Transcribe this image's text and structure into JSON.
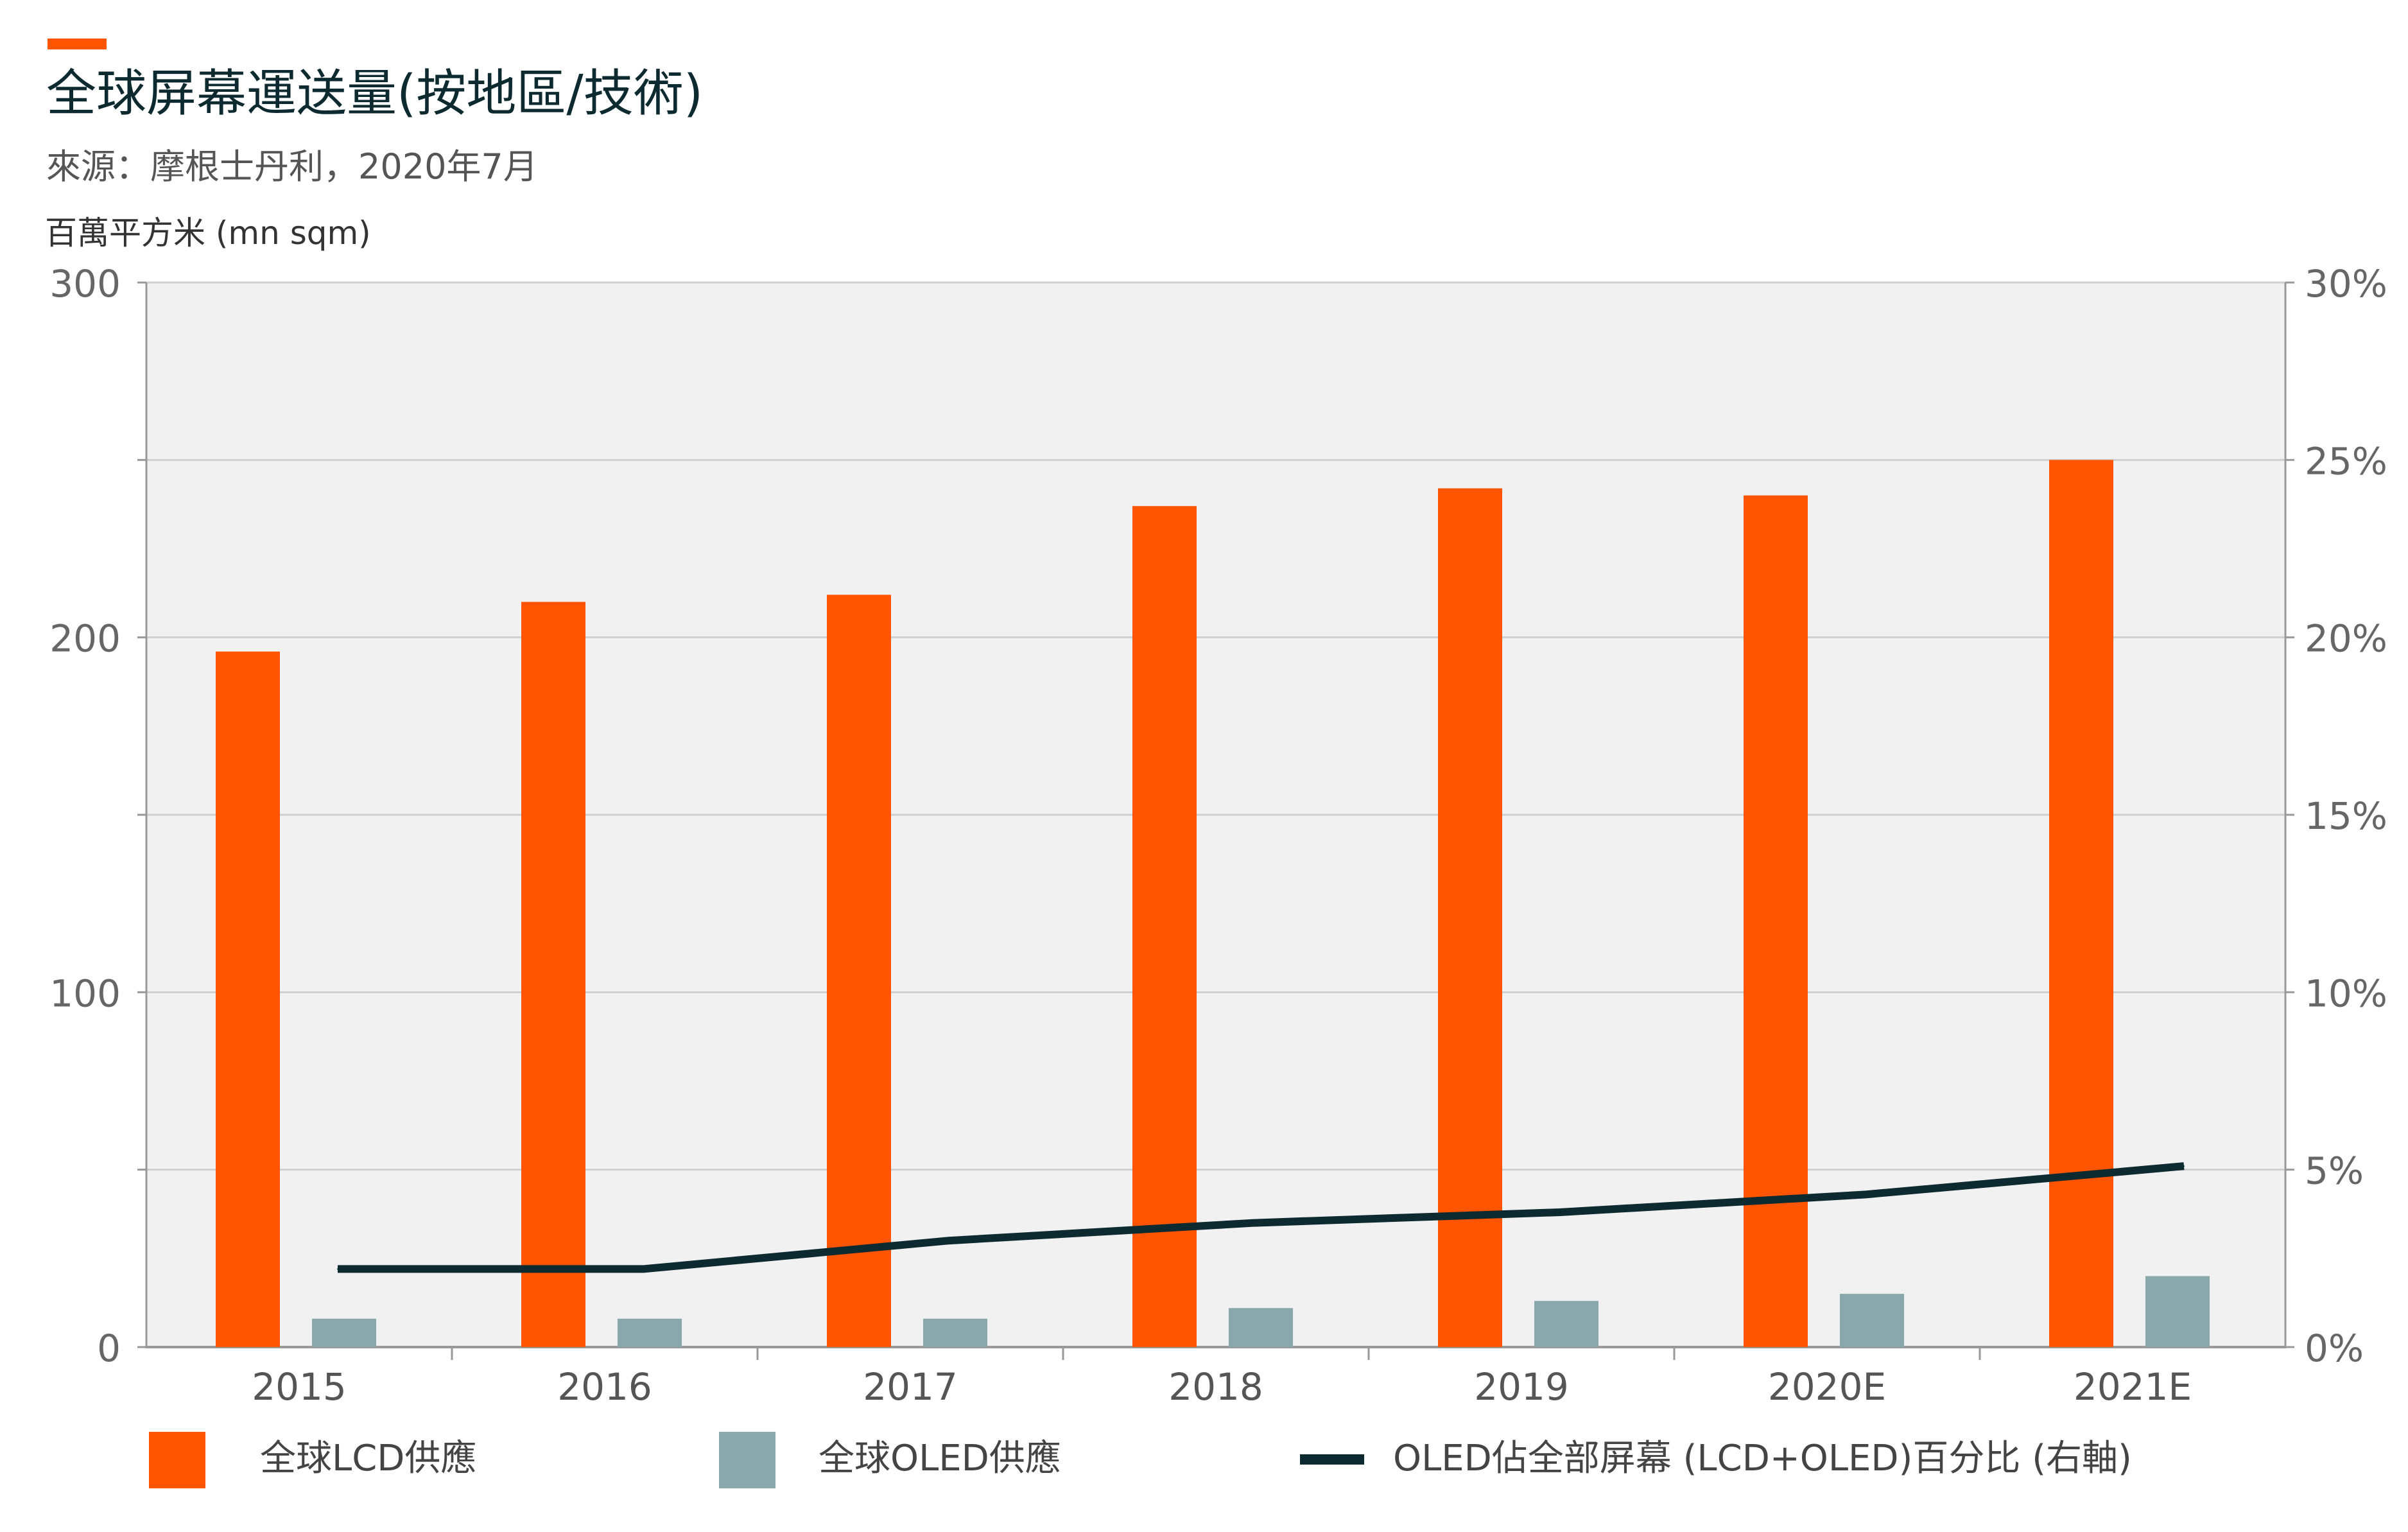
{
  "title": "全球屏幕運送量(按地區/技術)",
  "source": "來源：摩根士丹利，2020年7月",
  "colors": {
    "accent": "#ff5500",
    "lcd": "#ff5500",
    "oled": "#88a8ab",
    "line": "#0d2a30",
    "plot_bg": "#f1f1f1",
    "grid": "#cfcfcf"
  },
  "chart_data": {
    "type": "bar",
    "categories": [
      "2015",
      "2016",
      "2017",
      "2018",
      "2019",
      "2020E",
      "2021E"
    ],
    "ylabel": "百萬平方米 (mn sqm)",
    "ylim": [
      0,
      300
    ],
    "y_ticks": [
      "0",
      "100",
      "200",
      "300"
    ],
    "y2lim": [
      0,
      30
    ],
    "y2_ticks": [
      "0%",
      "5%",
      "10%",
      "15%",
      "20%",
      "25%",
      "30%"
    ],
    "series": [
      {
        "name": "全球LCD供應",
        "type": "bar",
        "axis": "left",
        "values": [
          196,
          210,
          212,
          237,
          242,
          240,
          250
        ]
      },
      {
        "name": "全球OLED供應",
        "type": "bar",
        "axis": "left",
        "values": [
          8,
          8,
          8,
          11,
          13,
          15,
          20
        ]
      },
      {
        "name": "OLED佔全部屏幕 (LCD+OLED)百分比 (右軸)",
        "type": "line",
        "axis": "right",
        "values": [
          2.2,
          2.2,
          3.0,
          3.5,
          3.8,
          4.3,
          5.1
        ]
      }
    ],
    "grid": true,
    "legend_position": "bottom"
  }
}
